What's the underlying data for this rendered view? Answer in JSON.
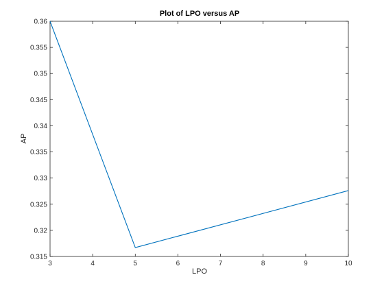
{
  "chart_data": {
    "type": "line",
    "title": "Plot of LPO versus AP",
    "xlabel": "LPO",
    "ylabel": "AP",
    "xlim": [
      3,
      10
    ],
    "ylim": [
      0.315,
      0.36
    ],
    "xticks": [
      "3",
      "4",
      "5",
      "6",
      "7",
      "8",
      "9",
      "10"
    ],
    "yticks": [
      "0.315",
      "0.32",
      "0.325",
      "0.33",
      "0.335",
      "0.34",
      "0.345",
      "0.35",
      "0.355",
      "0.36"
    ],
    "grid": false,
    "line_color": "#0072bd",
    "series": [
      {
        "x": [
          3,
          5,
          10
        ],
        "y": [
          0.36,
          0.3167,
          0.3276
        ]
      }
    ]
  }
}
